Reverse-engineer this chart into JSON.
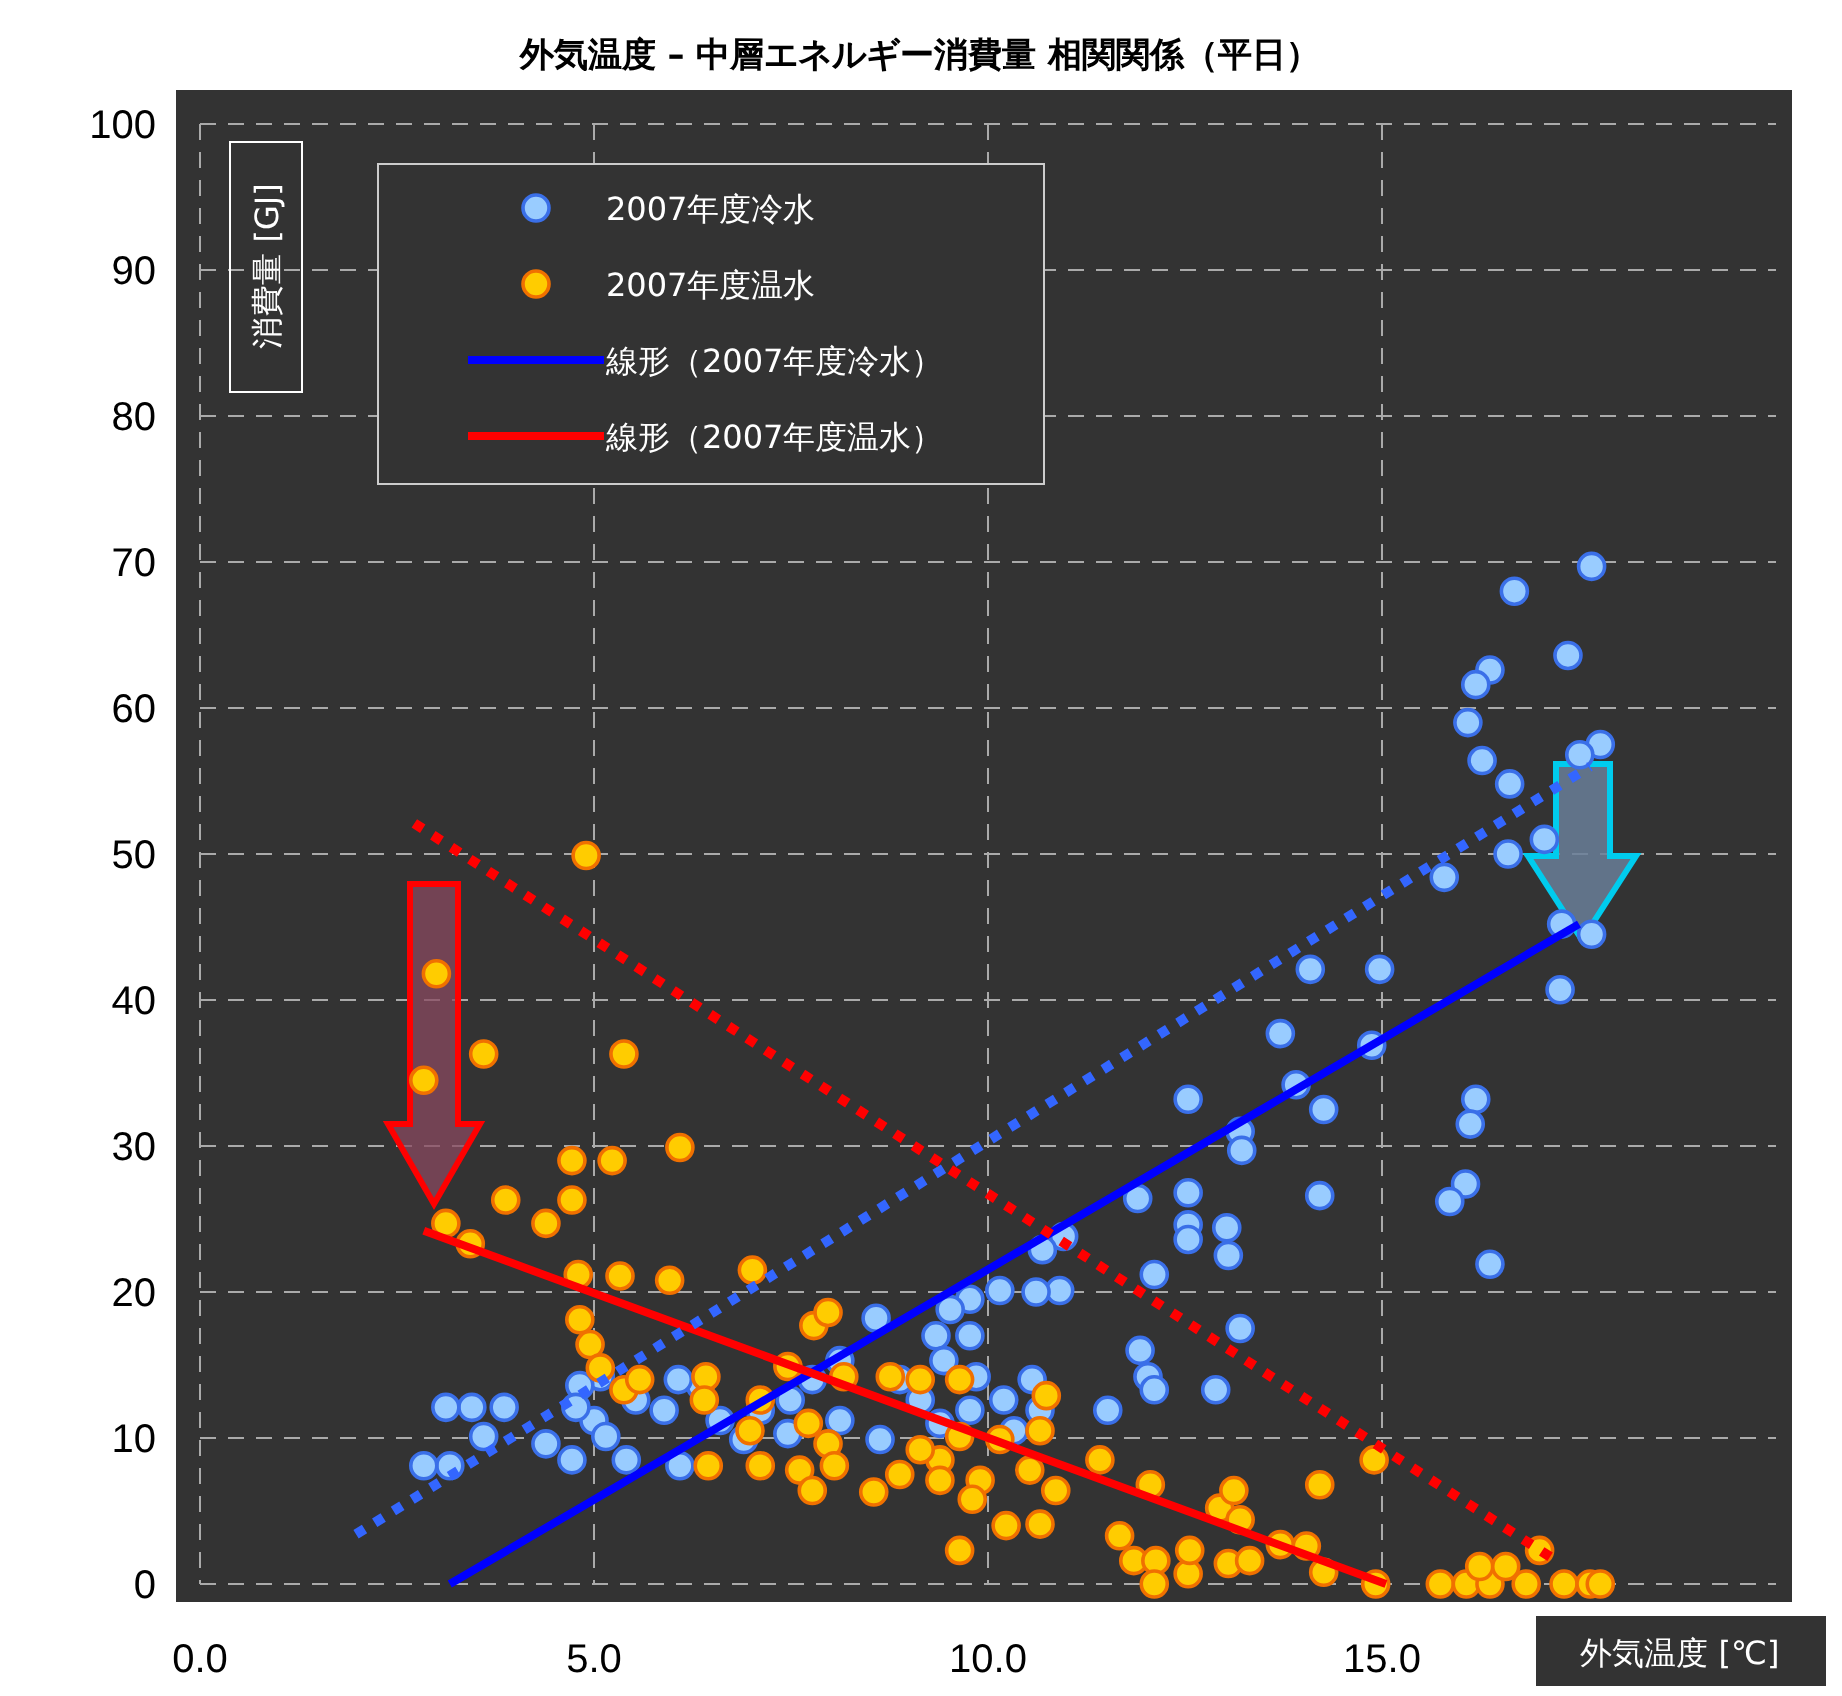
{
  "chart_data": {
    "type": "scatter",
    "title": "外気温度 – 中層エネルギー消費量 相関関係（平日）",
    "xlabel": "外気温度 [℃]",
    "ylabel": "消費量 [GJ]",
    "xlim": [
      0,
      20
    ],
    "ylim": [
      0,
      100
    ],
    "xticks": [
      {
        "value": 0,
        "label": "0.0"
      },
      {
        "value": 5,
        "label": "5.0"
      },
      {
        "value": 10,
        "label": "10.0"
      },
      {
        "value": 15,
        "label": "15.0"
      }
    ],
    "yticks": [
      0,
      10,
      20,
      30,
      40,
      50,
      60,
      70,
      80,
      90,
      100
    ],
    "grid": true,
    "legend": "top left",
    "series": [
      {
        "name": "2007年度冷水",
        "marker": "circle",
        "color": "#99ccff",
        "x": [
          17.66,
          16.68,
          17.36,
          16.37,
          16.19,
          16.09,
          16.27,
          16.62,
          17.77,
          17.51,
          16.6,
          17.06,
          15.79,
          17.28,
          17.66,
          17.26,
          16.19,
          16.12,
          16.06,
          15.86,
          16.37,
          14.97,
          14.09,
          13.71,
          14.87,
          14.26,
          13.91,
          12.54,
          13.2,
          13.22,
          14.21,
          11.9,
          12.54,
          12.54,
          12.54,
          13.03,
          13.05,
          12.11,
          13.2,
          11.93,
          12.03,
          12.11,
          12.89,
          11.52,
          10.96,
          10.69,
          10.91,
          10.61,
          10.15,
          9.77,
          9.52,
          9.77,
          9.34,
          9.85,
          8.58,
          9.44,
          10.2,
          10.56,
          10.33,
          8.63,
          8.12,
          7.11,
          7.46,
          7.77,
          6.9,
          6.6,
          6.35,
          6.07,
          5.89,
          6.09,
          5.08,
          4.82,
          5.0,
          4.77,
          5.15,
          5.53,
          5.41,
          4.72,
          4.39,
          3.86,
          3.45,
          3.12,
          3.6,
          3.17,
          2.84,
          8.88,
          9.14,
          8.12,
          7.49,
          10.66,
          9.77,
          9.39
        ],
        "values": [
          69.7,
          68.0,
          63.6,
          62.6,
          61.6,
          59.0,
          56.4,
          54.8,
          57.5,
          56.8,
          50.0,
          51.0,
          48.4,
          45.2,
          44.5,
          40.7,
          33.2,
          31.5,
          27.4,
          26.2,
          21.9,
          42.1,
          42.1,
          37.7,
          36.9,
          32.5,
          34.2,
          33.2,
          31.0,
          29.7,
          26.6,
          26.4,
          26.8,
          24.6,
          23.6,
          24.4,
          22.5,
          21.2,
          17.5,
          16.0,
          14.2,
          13.3,
          13.3,
          11.9,
          23.8,
          22.9,
          20.1,
          20.0,
          20.1,
          19.5,
          18.8,
          17.0,
          17.0,
          14.2,
          18.2,
          15.3,
          12.6,
          14.0,
          10.5,
          9.9,
          11.2,
          11.9,
          10.3,
          14.0,
          9.9,
          11.2,
          13.6,
          14.0,
          11.9,
          8.1,
          14.2,
          13.6,
          11.2,
          12.1,
          10.1,
          12.6,
          8.5,
          8.5,
          9.6,
          12.1,
          12.1,
          12.1,
          10.1,
          8.1,
          8.1,
          14.0,
          12.6,
          15.3,
          12.6,
          11.9,
          11.9,
          11.0
        ]
      },
      {
        "name": "2007年度温水",
        "marker": "circle",
        "color": "#ffcc00",
        "x": [
          4.9,
          3.0,
          2.84,
          3.6,
          5.38,
          4.72,
          5.23,
          6.09,
          3.88,
          4.72,
          4.39,
          3.12,
          3.43,
          4.8,
          5.33,
          5.96,
          7.01,
          4.82,
          4.95,
          5.08,
          5.38,
          5.58,
          6.42,
          6.4,
          6.98,
          7.79,
          7.97,
          7.46,
          8.17,
          7.11,
          7.72,
          7.97,
          8.76,
          9.14,
          9.64,
          7.61,
          7.11,
          6.45,
          8.05,
          8.88,
          7.77,
          8.55,
          9.39,
          9.64,
          9.14,
          9.39,
          9.9,
          9.8,
          9.64,
          10.53,
          10.66,
          10.15,
          10.86,
          10.66,
          10.23,
          10.74,
          11.42,
          12.06,
          11.67,
          11.85,
          12.13,
          12.11,
          12.54,
          12.56,
          12.94,
          13.2,
          13.12,
          13.05,
          13.32,
          13.71,
          14.04,
          14.21,
          14.9,
          14.26,
          14.92,
          15.74,
          16.07,
          16.37,
          16.24,
          16.57,
          17.0,
          17.31,
          17.64,
          17.77,
          16.83
        ],
        "values": [
          49.9,
          41.8,
          34.5,
          36.3,
          36.3,
          29.0,
          29.0,
          29.9,
          26.3,
          26.3,
          24.7,
          24.7,
          23.3,
          21.2,
          21.1,
          20.8,
          21.5,
          18.1,
          16.4,
          14.8,
          13.3,
          14.0,
          14.2,
          12.6,
          10.5,
          17.7,
          18.6,
          14.9,
          14.2,
          12.6,
          11.0,
          9.6,
          14.2,
          14.0,
          14.0,
          7.8,
          8.1,
          8.1,
          8.1,
          7.5,
          6.4,
          6.3,
          8.5,
          10.1,
          9.2,
          7.1,
          7.1,
          5.8,
          2.3,
          7.8,
          10.5,
          9.9,
          6.4,
          4.1,
          4.0,
          12.9,
          8.5,
          6.8,
          3.3,
          1.6,
          1.6,
          0,
          0.7,
          2.3,
          5.2,
          4.4,
          6.4,
          1.4,
          1.6,
          2.7,
          2.6,
          6.8,
          8.5,
          0.8,
          0,
          0,
          0,
          0,
          1.2,
          1.2,
          2.3,
          0,
          0,
          0,
          0
        ]
      },
      {
        "type": "line",
        "name": "線形（2007年度冷水）",
        "color": "#0000ff",
        "line_style": "solid",
        "x": [
          3.17,
          17.5
        ],
        "values": [
          0,
          45.2
        ]
      },
      {
        "type": "line",
        "name": "線形（2007年度温水）",
        "color": "#ff0000",
        "line_style": "solid",
        "x": [
          2.84,
          15.05
        ],
        "values": [
          24.2,
          0
        ]
      },
      {
        "type": "line",
        "color": "#3366ff",
        "line_style": "dotted",
        "x": [
          1.98,
          17.64
        ],
        "values": [
          3.4,
          56.0
        ]
      },
      {
        "type": "line",
        "color": "#ff0000",
        "line_style": "dotted",
        "x": [
          2.72,
          17.21
        ],
        "values": [
          52.1,
          1.6
        ]
      }
    ]
  }
}
